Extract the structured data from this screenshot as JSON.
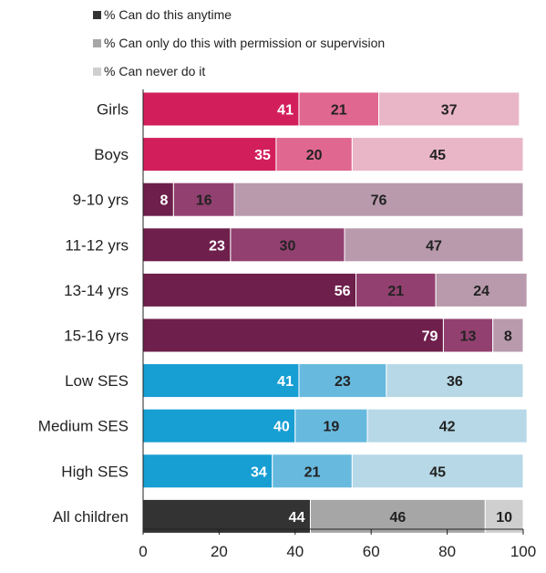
{
  "chart_data": {
    "type": "bar",
    "orientation": "horizontal",
    "stacked": true,
    "legend": [
      {
        "label": "% Can do this anytime",
        "color": "#333333"
      },
      {
        "label": "% Can only do this with permission or supervision",
        "color": "#a6a6a6"
      },
      {
        "label": "% Can never do it",
        "color": "#cfcfcf"
      }
    ],
    "legend_position": "top",
    "categories": [
      "Girls",
      "Boys",
      "9-10 yrs",
      "11-12 yrs",
      "13-14 yrs",
      "15-16 yrs",
      "Low SES",
      "Medium SES",
      "High SES",
      "All children"
    ],
    "series": [
      {
        "name": "% Can do this anytime",
        "values": [
          41,
          35,
          8,
          23,
          56,
          79,
          41,
          40,
          34,
          44
        ]
      },
      {
        "name": "% Can only do this with permission or supervision",
        "values": [
          21,
          20,
          16,
          30,
          21,
          13,
          23,
          19,
          21,
          46
        ]
      },
      {
        "name": "% Can never do it",
        "values": [
          37,
          45,
          76,
          47,
          24,
          8,
          36,
          42,
          45,
          10
        ]
      }
    ],
    "bar_colors": [
      [
        "#d21f5b",
        "#e0678f",
        "#e9b6c8"
      ],
      [
        "#d21f5b",
        "#e0678f",
        "#e9b6c8"
      ],
      [
        "#6e1f4b",
        "#924070",
        "#b89aac"
      ],
      [
        "#6e1f4b",
        "#924070",
        "#b89aac"
      ],
      [
        "#6e1f4b",
        "#924070",
        "#b89aac"
      ],
      [
        "#6e1f4b",
        "#924070",
        "#b89aac"
      ],
      [
        "#179ed3",
        "#67b9de",
        "#b7d8e6"
      ],
      [
        "#179ed3",
        "#67b9de",
        "#b7d8e6"
      ],
      [
        "#179ed3",
        "#67b9de",
        "#b7d8e6"
      ],
      [
        "#333333",
        "#a6a6a6",
        "#cfcfcf"
      ]
    ],
    "label_colors": [
      "#ffffff",
      "#222222",
      "#222222"
    ],
    "xlim": [
      0,
      100
    ],
    "xticks": [
      0,
      20,
      40,
      60,
      80,
      100
    ],
    "grid": false,
    "title": "",
    "xlabel": "",
    "ylabel": ""
  }
}
